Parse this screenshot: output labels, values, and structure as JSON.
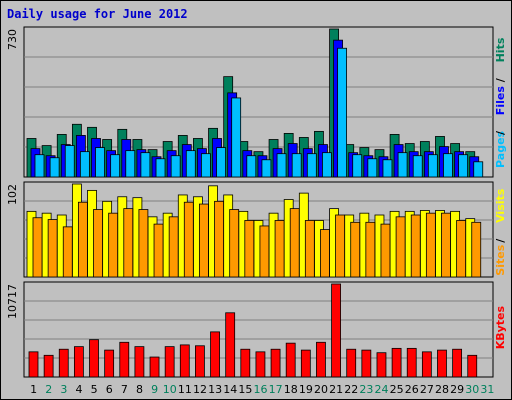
{
  "chart_title": "Daily usage for June 2012",
  "chart_data": [
    {
      "type": "bar",
      "panel": "top",
      "ymax_label": "730",
      "ylim": [
        0,
        730
      ],
      "x": [
        "1",
        "2",
        "3",
        "4",
        "5",
        "6",
        "7",
        "8",
        "9",
        "10",
        "11",
        "12",
        "13",
        "14",
        "15",
        "16",
        "17",
        "18",
        "19",
        "20",
        "21",
        "22",
        "23",
        "24",
        "25",
        "26",
        "27",
        "28",
        "29",
        "30",
        "31"
      ],
      "series": [
        {
          "name": "Hits",
          "color": "#00805c",
          "values": [
            190,
            155,
            210,
            260,
            245,
            185,
            235,
            185,
            135,
            175,
            205,
            190,
            240,
            495,
            175,
            125,
            185,
            215,
            195,
            225,
            730,
            160,
            145,
            135,
            210,
            165,
            175,
            200,
            165,
            125,
            0
          ]
        },
        {
          "name": "Files",
          "color": "#0000ff",
          "values": [
            140,
            105,
            160,
            205,
            190,
            130,
            185,
            135,
            100,
            130,
            160,
            140,
            190,
            415,
            130,
            105,
            140,
            165,
            140,
            160,
            675,
            120,
            105,
            100,
            160,
            125,
            125,
            150,
            125,
            100,
            0
          ]
        },
        {
          "name": "Pages",
          "color": "#00bfff",
          "values": [
            110,
            95,
            155,
            125,
            145,
            110,
            130,
            120,
            90,
            105,
            130,
            115,
            145,
            390,
            105,
            85,
            115,
            115,
            115,
            120,
            635,
            110,
            90,
            85,
            120,
            105,
            110,
            115,
            110,
            75,
            0
          ]
        }
      ],
      "axis_label": [
        "Pages",
        "Files",
        "Hits"
      ],
      "axis_label_colors": [
        "#00bfff",
        "#0000ff",
        "#00805c"
      ]
    },
    {
      "type": "bar",
      "panel": "middle",
      "ymax_label": "102",
      "ylim": [
        0,
        102
      ],
      "x": [
        "1",
        "2",
        "3",
        "4",
        "5",
        "6",
        "7",
        "8",
        "9",
        "10",
        "11",
        "12",
        "13",
        "14",
        "15",
        "16",
        "17",
        "18",
        "19",
        "20",
        "21",
        "22",
        "23",
        "24",
        "25",
        "26",
        "27",
        "28",
        "29",
        "30",
        "31"
      ],
      "series": [
        {
          "name": "Visits",
          "color": "#ffff00",
          "values": [
            72,
            70,
            68,
            102,
            95,
            83,
            88,
            87,
            66,
            70,
            90,
            88,
            100,
            90,
            72,
            62,
            70,
            85,
            92,
            62,
            75,
            68,
            70,
            68,
            72,
            72,
            73,
            73,
            72,
            64,
            0
          ]
        },
        {
          "name": "Sites",
          "color": "#ff9900",
          "values": [
            65,
            63,
            55,
            82,
            74,
            70,
            75,
            74,
            58,
            66,
            82,
            80,
            83,
            74,
            62,
            56,
            62,
            75,
            62,
            52,
            68,
            60,
            60,
            58,
            66,
            68,
            70,
            70,
            62,
            60,
            0
          ]
        }
      ],
      "axis_label": [
        "Sites",
        "Visits"
      ],
      "axis_label_colors": [
        "#ff9900",
        "#ffff00"
      ]
    },
    {
      "type": "bar",
      "panel": "bottom",
      "ymax_label": "10717",
      "ylim": [
        0,
        10717
      ],
      "x": [
        "1",
        "2",
        "3",
        "4",
        "5",
        "6",
        "7",
        "8",
        "9",
        "10",
        "11",
        "12",
        "13",
        "14",
        "15",
        "16",
        "17",
        "18",
        "19",
        "20",
        "21",
        "22",
        "23",
        "24",
        "25",
        "26",
        "27",
        "28",
        "29",
        "30",
        "31"
      ],
      "series": [
        {
          "name": "KBytes",
          "color": "#ff0000",
          "values": [
            2900,
            2500,
            3200,
            3500,
            4300,
            3100,
            4000,
            3500,
            2300,
            3500,
            3700,
            3600,
            5200,
            7400,
            3200,
            2900,
            3200,
            3900,
            3100,
            4000,
            10717,
            3200,
            3100,
            2800,
            3300,
            3300,
            2900,
            3100,
            3200,
            2500,
            0
          ]
        }
      ],
      "axis_label": [
        "KBytes"
      ],
      "axis_label_colors": [
        "#ff0000"
      ]
    }
  ],
  "day_label_colors": {
    "weekday": "#000000",
    "weekend": "#00805c"
  },
  "weekend_days": [
    "2",
    "3",
    "9",
    "10",
    "16",
    "17",
    "23",
    "24",
    "30",
    "31"
  ]
}
